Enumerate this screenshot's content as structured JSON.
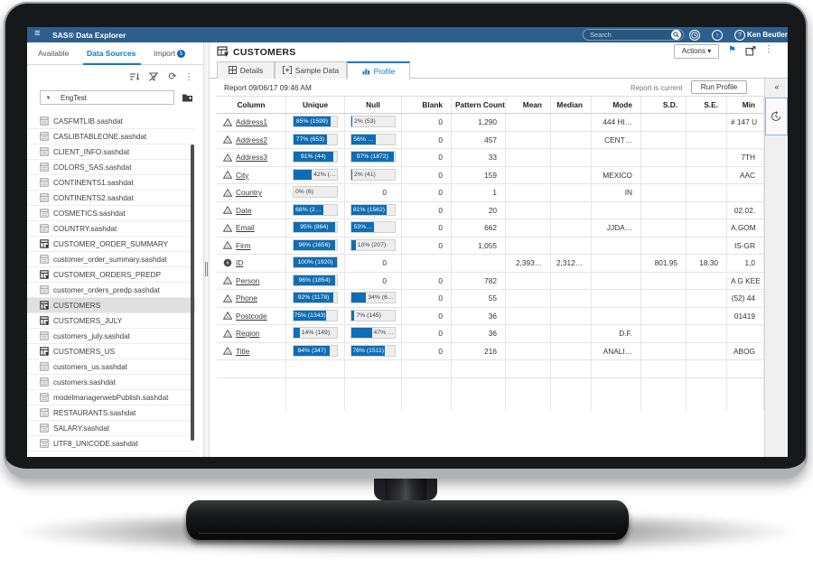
{
  "topbar": {
    "title": "SAS® Data Explorer",
    "search_placeholder": "Search",
    "user": "Ken Beutler"
  },
  "glyphs": {
    "hamburger": "≡",
    "caret": "▾",
    "ellipsis": "⋮",
    "refresh": "⟳",
    "flag": "⚑",
    "collapse": "«",
    "help": "?",
    "up_arrow": "↑",
    "dd_caret": "▼"
  },
  "sidebar": {
    "tabs": [
      {
        "label": "Available",
        "active": false
      },
      {
        "label": "Data Sources",
        "active": true
      },
      {
        "label": "Import",
        "active": false,
        "badge": "5"
      }
    ],
    "filter_value": "EngTest",
    "items": [
      {
        "label": "CASFMTLIB.sashdat",
        "type": "file"
      },
      {
        "label": "CASLIBTABLEONE.sashdat",
        "type": "file"
      },
      {
        "label": "CLIENT_INFO.sashdat",
        "type": "file"
      },
      {
        "label": "COLORS_SAS.sashdat",
        "type": "file"
      },
      {
        "label": "CONTINENTS1.sashdat",
        "type": "file"
      },
      {
        "label": "CONTINENTS2.sashdat",
        "type": "file"
      },
      {
        "label": "COSMETICS.sashdat",
        "type": "file"
      },
      {
        "label": "COUNTRY.sashdat",
        "type": "file"
      },
      {
        "label": "CUSTOMER_ORDER_SUMMARY",
        "type": "table"
      },
      {
        "label": "customer_order_summary.sashdat",
        "type": "file"
      },
      {
        "label": "CUSTOMER_ORDERS_PREDP",
        "type": "table"
      },
      {
        "label": "customer_orders_predp.sashdat",
        "type": "file"
      },
      {
        "label": "CUSTOMERS",
        "type": "table",
        "selected": true
      },
      {
        "label": "CUSTOMERS_JULY",
        "type": "table"
      },
      {
        "label": "customers_july.sashdat",
        "type": "file"
      },
      {
        "label": "CUSTOMERS_US",
        "type": "table"
      },
      {
        "label": "customers_us.sashdat",
        "type": "file"
      },
      {
        "label": "customers.sashdat",
        "type": "file"
      },
      {
        "label": "modelmanagerwebPublish.sashdat",
        "type": "file"
      },
      {
        "label": "RESTAURANTS.sashdat",
        "type": "file"
      },
      {
        "label": "SALARY.sashdat",
        "type": "file"
      },
      {
        "label": "UTF8_UNICODE.sashdat",
        "type": "file"
      }
    ]
  },
  "main": {
    "title": "CUSTOMERS",
    "actions_label": "Actions ▾",
    "tabs": [
      {
        "label": "Details",
        "active": false
      },
      {
        "label": "Sample Data",
        "active": false
      },
      {
        "label": "Profile",
        "active": true
      }
    ],
    "report": {
      "title": "Report 09/06/17 09:46 AM",
      "status": "Report is current",
      "run_label": "Run Profile"
    }
  },
  "table": {
    "columns": [
      "Column",
      "Unique",
      "Null",
      "Blank",
      "Pattern Count",
      "Mean",
      "Median",
      "Mode",
      "S.D.",
      "S.E.",
      "Min"
    ],
    "rows": [
      {
        "name": "Address1",
        "type": "char",
        "unique": {
          "pct": 85,
          "label": "85% (1599)"
        },
        "nulls": {
          "pct": 2,
          "label": "2% (53)"
        },
        "blank": "0",
        "pattern_count": "1,290",
        "mean": "",
        "median": "",
        "mode": "444 HI…",
        "sd": "",
        "se": "",
        "min": "# 147 U"
      },
      {
        "name": "Address2",
        "type": "char",
        "unique": {
          "pct": 77,
          "label": "77% (653)"
        },
        "nulls": {
          "pct": 56,
          "label": "56% …"
        },
        "blank": "0",
        "pattern_count": "457",
        "mean": "",
        "median": "",
        "mode": "CENT…",
        "sd": "",
        "se": "",
        "min": ""
      },
      {
        "name": "Address3",
        "type": "char",
        "unique": {
          "pct": 91,
          "label": "91% (44)"
        },
        "nulls": {
          "pct": 97,
          "label": "97% (1872)"
        },
        "blank": "0",
        "pattern_count": "33",
        "mean": "",
        "median": "",
        "mode": "",
        "sd": "",
        "se": "",
        "min": "7TH"
      },
      {
        "name": "City",
        "type": "char",
        "unique": {
          "pct": 42,
          "label": "42% (…"
        },
        "nulls": {
          "pct": 2,
          "label": "2% (41)"
        },
        "blank": "0",
        "pattern_count": "159",
        "mean": "",
        "median": "",
        "mode": "MEXICO",
        "sd": "",
        "se": "",
        "min": "AAC"
      },
      {
        "name": "Country",
        "type": "char",
        "unique": {
          "pct": 0,
          "label": "0% (6)"
        },
        "nulls": {
          "pct": null,
          "label": "0"
        },
        "blank": "0",
        "pattern_count": "1",
        "mean": "",
        "median": "",
        "mode": "IN",
        "sd": "",
        "se": "",
        "min": ""
      },
      {
        "name": "Date",
        "type": "char",
        "unique": {
          "pct": 68,
          "label": "68% (2…"
        },
        "nulls": {
          "pct": 81,
          "label": "81% (1562)"
        },
        "blank": "0",
        "pattern_count": "20",
        "mean": "",
        "median": "",
        "mode": "",
        "sd": "",
        "se": "",
        "min": "02.02."
      },
      {
        "name": "Email",
        "type": "char",
        "unique": {
          "pct": 95,
          "label": "95% (864)"
        },
        "nulls": {
          "pct": 53,
          "label": "53%…"
        },
        "blank": "0",
        "pattern_count": "662",
        "mean": "",
        "median": "",
        "mode": "JJDA…",
        "sd": "",
        "se": "",
        "min": "A.GOM"
      },
      {
        "name": "Firm",
        "type": "char",
        "unique": {
          "pct": 96,
          "label": "96% (1656)"
        },
        "nulls": {
          "pct": 10,
          "label": "10% (207)"
        },
        "blank": "0",
        "pattern_count": "1,055",
        "mean": "",
        "median": "",
        "mode": "",
        "sd": "",
        "se": "",
        "min": "IS-GR"
      },
      {
        "name": "ID",
        "type": "num",
        "unique": {
          "pct": 100,
          "label": "100% (1920)"
        },
        "nulls": {
          "pct": null,
          "label": "0"
        },
        "blank": "",
        "pattern_count": "",
        "mean": "2,393…",
        "median": "2,312…",
        "mode": "",
        "sd": "801.95",
        "se": "18.30",
        "min": "1,0"
      },
      {
        "name": "Person",
        "type": "char",
        "unique": {
          "pct": 96,
          "label": "96% (1854)"
        },
        "nulls": {
          "pct": null,
          "label": "0"
        },
        "blank": "0",
        "pattern_count": "782",
        "mean": "",
        "median": "",
        "mode": "",
        "sd": "",
        "se": "",
        "min": "A G KEE"
      },
      {
        "name": "Phone",
        "type": "char",
        "unique": {
          "pct": 92,
          "label": "92% (1178)"
        },
        "nulls": {
          "pct": 34,
          "label": "34% (6…"
        },
        "blank": "0",
        "pattern_count": "55",
        "mean": "",
        "median": "",
        "mode": "",
        "sd": "",
        "se": "",
        "min": "(52) 44"
      },
      {
        "name": "Postcode",
        "type": "char",
        "unique": {
          "pct": 75,
          "label": "75% (1343)"
        },
        "nulls": {
          "pct": 7,
          "label": "7% (145)"
        },
        "blank": "0",
        "pattern_count": "36",
        "mean": "",
        "median": "",
        "mode": "",
        "sd": "",
        "se": "",
        "min": "01419"
      },
      {
        "name": "Region",
        "type": "char",
        "unique": {
          "pct": 14,
          "label": "14% (149)"
        },
        "nulls": {
          "pct": 47,
          "label": "47% …"
        },
        "blank": "0",
        "pattern_count": "36",
        "mean": "",
        "median": "",
        "mode": "D.F.",
        "sd": "",
        "se": "",
        "min": ""
      },
      {
        "name": "Title",
        "type": "char",
        "unique": {
          "pct": 84,
          "label": "84% (347)"
        },
        "nulls": {
          "pct": 78,
          "label": "78% (1511)"
        },
        "blank": "0",
        "pattern_count": "216",
        "mean": "",
        "median": "",
        "mode": "ANALI…",
        "sd": "",
        "se": "",
        "min": "ABOG"
      }
    ]
  },
  "colors": {
    "appbar": "#2d5f8e",
    "accent_blue": "#0a7acc",
    "bar_fill": "#0f6db5",
    "selected_row": "#e0e0e0"
  }
}
